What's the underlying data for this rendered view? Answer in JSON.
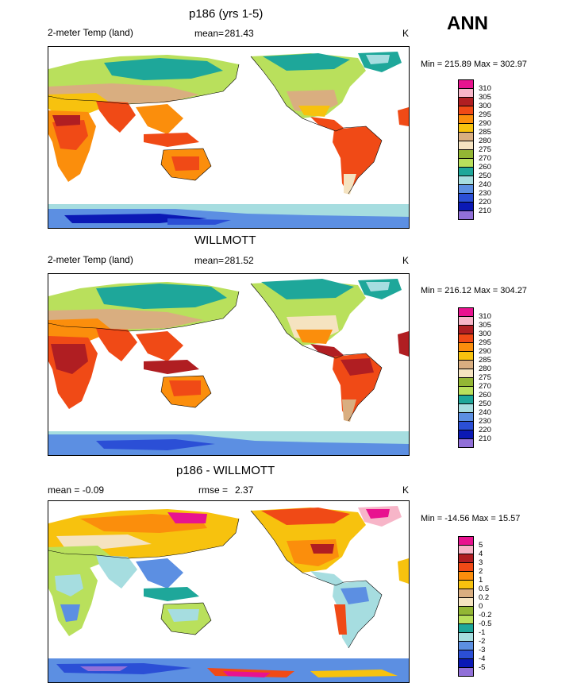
{
  "season": "ANN",
  "units": "K",
  "panels": [
    {
      "title": "p186 (yrs 1-5)",
      "left_label": "2-meter Temp (land)",
      "stat_label": "mean=",
      "stat_value": "281.43",
      "units": "K",
      "minmax": "Min = 215.89 Max = 302.97",
      "colorbar": {
        "labels": [
          "310",
          "305",
          "300",
          "295",
          "290",
          "285",
          "280",
          "275",
          "270",
          "260",
          "250",
          "240",
          "230",
          "220",
          "210"
        ],
        "colors": [
          "#e8138f",
          "#f7b5c8",
          "#b01e22",
          "#f04a16",
          "#fb8e0c",
          "#f7c20e",
          "#d9ae80",
          "#f5e3c0",
          "#93b634",
          "#b9e05c",
          "#1ea79a",
          "#a6dde0",
          "#5c8fe2",
          "#2b4fd6",
          "#0b19b5",
          "#9170d8"
        ]
      }
    },
    {
      "title": "WILLMOTT",
      "left_label": "2-meter Temp (land)",
      "stat_label": "mean=",
      "stat_value": "281.52",
      "units": "K",
      "minmax": "Min = 216.12 Max = 304.27",
      "colorbar": {
        "labels": [
          "310",
          "305",
          "300",
          "295",
          "290",
          "285",
          "280",
          "275",
          "270",
          "260",
          "250",
          "240",
          "230",
          "220",
          "210"
        ],
        "colors": [
          "#e8138f",
          "#f7b5c8",
          "#b01e22",
          "#f04a16",
          "#fb8e0c",
          "#f7c20e",
          "#d9ae80",
          "#f5e3c0",
          "#93b634",
          "#b9e05c",
          "#1ea79a",
          "#a6dde0",
          "#5c8fe2",
          "#2b4fd6",
          "#0b19b5",
          "#9170d8"
        ]
      }
    },
    {
      "title": "p186 - WILLMOTT",
      "left_label": "mean =  -0.09",
      "stat_label": "rmse =",
      "stat_value": "2.37",
      "units": "K",
      "minmax": "Min = -14.56 Max =  15.57",
      "colorbar": {
        "labels": [
          "5",
          "4",
          "3",
          "2",
          "1",
          "0.5",
          "0.2",
          "0",
          "-0.2",
          "-0.5",
          "-1",
          "-2",
          "-3",
          "-4",
          "-5"
        ],
        "colors": [
          "#e8138f",
          "#f7b5c8",
          "#b01e22",
          "#f04a16",
          "#fb8e0c",
          "#f7c20e",
          "#d9ae80",
          "#f5e3c0",
          "#93b634",
          "#b9e05c",
          "#1ea79a",
          "#a6dde0",
          "#5c8fe2",
          "#2b4fd6",
          "#0b19b5",
          "#9170d8"
        ]
      }
    }
  ],
  "chart_data": [
    {
      "type": "heatmap",
      "title": "p186 (yrs 1-5)",
      "variable": "2-meter Temp (land)",
      "units": "K",
      "mean": 281.43,
      "min": 215.89,
      "max": 302.97,
      "contour_levels": [
        210,
        220,
        230,
        240,
        250,
        260,
        270,
        275,
        280,
        285,
        290,
        295,
        300,
        305,
        310
      ]
    },
    {
      "type": "heatmap",
      "title": "WILLMOTT",
      "variable": "2-meter Temp (land)",
      "units": "K",
      "mean": 281.52,
      "min": 216.12,
      "max": 304.27,
      "contour_levels": [
        210,
        220,
        230,
        240,
        250,
        260,
        270,
        275,
        280,
        285,
        290,
        295,
        300,
        305,
        310
      ]
    },
    {
      "type": "heatmap",
      "title": "p186 - WILLMOTT",
      "units": "K",
      "mean": -0.09,
      "rmse": 2.37,
      "min": -14.56,
      "max": 15.57,
      "contour_levels": [
        -5,
        -4,
        -3,
        -2,
        -1,
        -0.5,
        -0.2,
        0,
        0.2,
        0.5,
        1,
        2,
        3,
        4,
        5
      ]
    }
  ]
}
